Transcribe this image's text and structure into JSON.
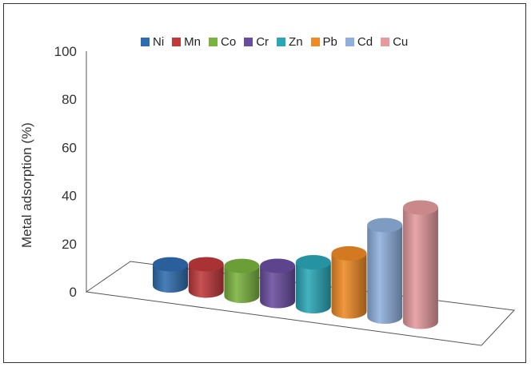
{
  "chart_data": {
    "type": "bar",
    "title": "",
    "xlabel": "",
    "ylabel": "Metal adsorption (%)",
    "ylim": [
      0,
      100
    ],
    "yticks": [
      "0",
      "20",
      "40",
      "60",
      "80",
      "100"
    ],
    "categories": [
      "Ni",
      "Mn",
      "Co",
      "Cr",
      "Zn",
      "Pb",
      "Cd",
      "Cu"
    ],
    "values": [
      12,
      15,
      17,
      20,
      25,
      33,
      52,
      65
    ],
    "colors": [
      "#2f6db0",
      "#c0393b",
      "#7ab33f",
      "#6a4da0",
      "#2aa7b7",
      "#ef8a25",
      "#8fb0dd",
      "#e59a9e"
    ],
    "legend_position": "top",
    "grid": false
  }
}
